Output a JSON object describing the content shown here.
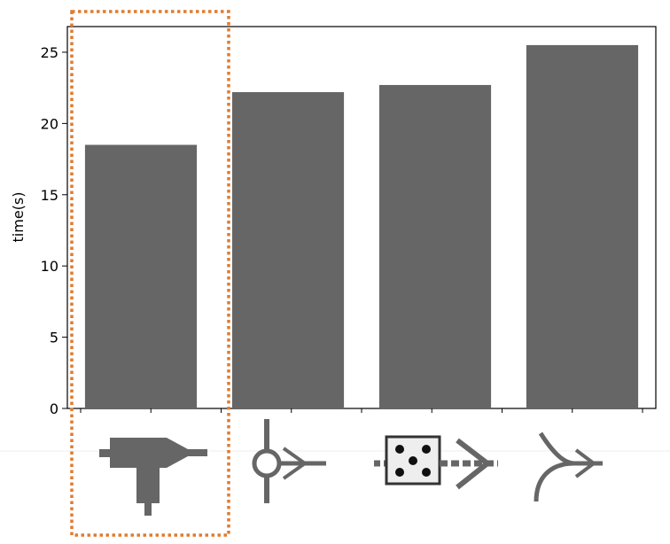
{
  "chart_data": {
    "type": "bar",
    "categories": [
      "",
      "",
      "",
      ""
    ],
    "category_icons": [
      "t-junction-nozzle-icon",
      "circle-merge-arrow-icon",
      "dot-grid-square-arrow-icon",
      "curved-merge-arrow-icon"
    ],
    "values": [
      18.5,
      22.2,
      22.7,
      25.5
    ],
    "title": "",
    "xlabel": "",
    "ylabel": "time(s)",
    "ylim": [
      0,
      26.8
    ],
    "yticks": [
      0,
      5,
      10,
      15,
      20,
      25
    ],
    "yticks_labels": [
      "0",
      "5",
      "10",
      "15",
      "20",
      "25"
    ],
    "bar_color": "#666666",
    "highlight_color": "#e07b2e",
    "highlight_category_index": 0,
    "grid": false,
    "legend": "none"
  }
}
